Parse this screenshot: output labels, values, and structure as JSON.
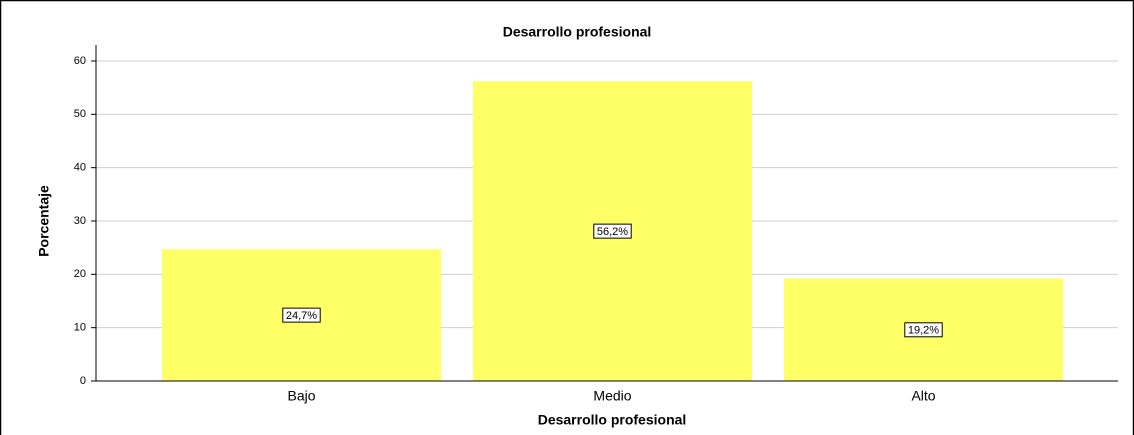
{
  "chart_data": {
    "type": "bar",
    "title": "Desarrollo profesional",
    "x_label": "Desarrollo profesional",
    "y_label": "Porcentaje",
    "categories": [
      "Bajo",
      "Medio",
      "Alto"
    ],
    "values": [
      24.7,
      56.2,
      19.2
    ],
    "value_labels": [
      "24,7%",
      "56,2%",
      "19,2%"
    ],
    "color": "#ffff66",
    "ylim": [
      0,
      63
    ],
    "yticks": [
      0,
      10,
      20,
      30,
      40,
      50,
      60
    ],
    "grid": true
  }
}
